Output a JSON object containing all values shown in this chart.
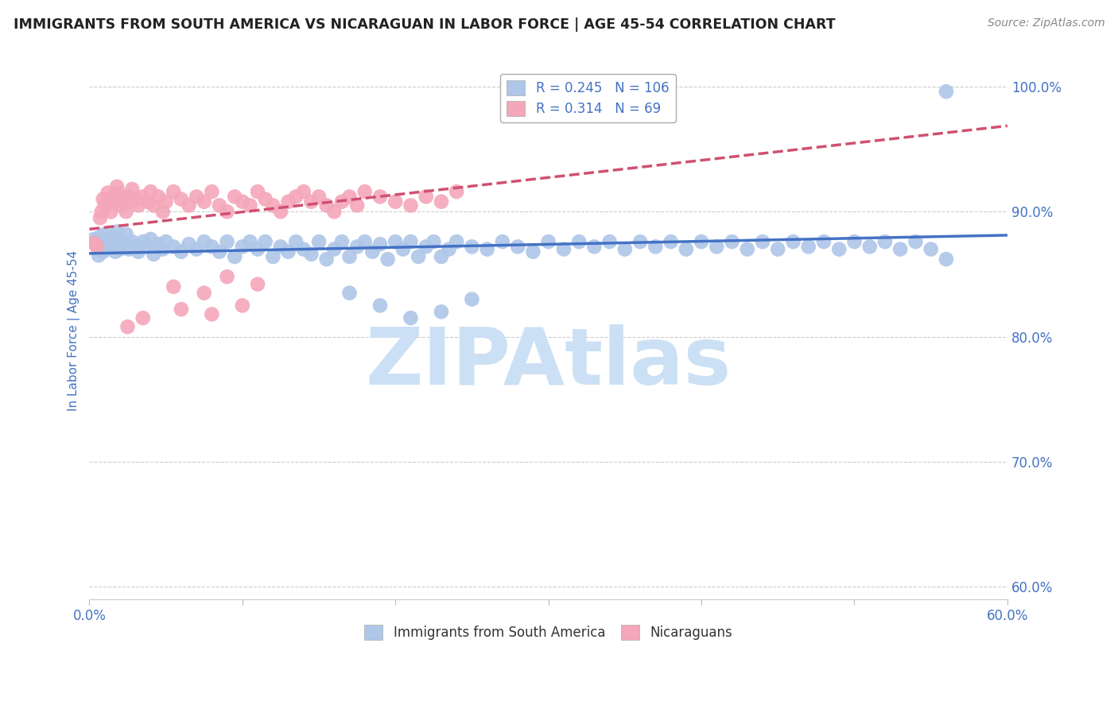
{
  "title": "IMMIGRANTS FROM SOUTH AMERICA VS NICARAGUAN IN LABOR FORCE | AGE 45-54 CORRELATION CHART",
  "source": "Source: ZipAtlas.com",
  "ylabel": "In Labor Force | Age 45-54",
  "xlim": [
    0.0,
    0.6
  ],
  "ylim": [
    0.59,
    1.02
  ],
  "yticks": [
    0.6,
    0.7,
    0.8,
    0.9,
    1.0
  ],
  "ytick_labels": [
    "60.0%",
    "70.0%",
    "80.0%",
    "90.0%",
    "100.0%"
  ],
  "xtick_positions": [
    0.0,
    0.1,
    0.2,
    0.3,
    0.4,
    0.5,
    0.6
  ],
  "xtick_labels": [
    "0.0%",
    "",
    "",
    "",
    "",
    "",
    "60.0%"
  ],
  "blue_R": 0.245,
  "blue_N": 106,
  "pink_R": 0.314,
  "pink_N": 69,
  "blue_color": "#aec6e8",
  "pink_color": "#f4a7b9",
  "blue_line_color": "#4472c4",
  "pink_line_color": "#d05070",
  "legend_text_color": "#4472c4",
  "axis_label_color": "#4472c4",
  "tick_label_color": "#4472c4",
  "grid_color": "#cccccc",
  "watermark": "ZIPAtlas",
  "watermark_color": "#cce0f5",
  "title_color": "#222222",
  "source_color": "#888888",
  "blue_legend_label": "Immigrants from South America",
  "pink_legend_label": "Nicaraguans",
  "blue_scatter_x": [
    0.003,
    0.005,
    0.006,
    0.007,
    0.008,
    0.009,
    0.01,
    0.011,
    0.012,
    0.013,
    0.014,
    0.015,
    0.016,
    0.017,
    0.018,
    0.019,
    0.02,
    0.022,
    0.024,
    0.026,
    0.028,
    0.03,
    0.032,
    0.035,
    0.038,
    0.04,
    0.042,
    0.045,
    0.048,
    0.05,
    0.055,
    0.06,
    0.065,
    0.07,
    0.075,
    0.08,
    0.085,
    0.09,
    0.095,
    0.1,
    0.105,
    0.11,
    0.115,
    0.12,
    0.125,
    0.13,
    0.135,
    0.14,
    0.145,
    0.15,
    0.155,
    0.16,
    0.165,
    0.17,
    0.175,
    0.18,
    0.185,
    0.19,
    0.195,
    0.2,
    0.205,
    0.21,
    0.215,
    0.22,
    0.225,
    0.23,
    0.235,
    0.24,
    0.25,
    0.26,
    0.27,
    0.28,
    0.29,
    0.3,
    0.31,
    0.32,
    0.33,
    0.34,
    0.35,
    0.36,
    0.37,
    0.38,
    0.39,
    0.4,
    0.41,
    0.42,
    0.43,
    0.44,
    0.45,
    0.46,
    0.47,
    0.48,
    0.49,
    0.5,
    0.51,
    0.52,
    0.53,
    0.54,
    0.55,
    0.56,
    0.23,
    0.25,
    0.17,
    0.19,
    0.21,
    0.56
  ],
  "blue_scatter_y": [
    0.878,
    0.872,
    0.865,
    0.88,
    0.875,
    0.868,
    0.882,
    0.876,
    0.87,
    0.878,
    0.872,
    0.88,
    0.875,
    0.868,
    0.884,
    0.876,
    0.87,
    0.876,
    0.882,
    0.87,
    0.876,
    0.872,
    0.868,
    0.876,
    0.872,
    0.878,
    0.866,
    0.874,
    0.87,
    0.876,
    0.872,
    0.868,
    0.874,
    0.87,
    0.876,
    0.872,
    0.868,
    0.876,
    0.864,
    0.872,
    0.876,
    0.87,
    0.876,
    0.864,
    0.872,
    0.868,
    0.876,
    0.87,
    0.866,
    0.876,
    0.862,
    0.87,
    0.876,
    0.864,
    0.872,
    0.876,
    0.868,
    0.874,
    0.862,
    0.876,
    0.87,
    0.876,
    0.864,
    0.872,
    0.876,
    0.864,
    0.87,
    0.876,
    0.872,
    0.87,
    0.876,
    0.872,
    0.868,
    0.876,
    0.87,
    0.876,
    0.872,
    0.876,
    0.87,
    0.876,
    0.872,
    0.876,
    0.87,
    0.876,
    0.872,
    0.876,
    0.87,
    0.876,
    0.87,
    0.876,
    0.872,
    0.876,
    0.87,
    0.876,
    0.872,
    0.876,
    0.87,
    0.876,
    0.87,
    0.996,
    0.82,
    0.83,
    0.835,
    0.825,
    0.815,
    0.862
  ],
  "pink_scatter_x": [
    0.003,
    0.005,
    0.007,
    0.008,
    0.009,
    0.01,
    0.012,
    0.013,
    0.014,
    0.015,
    0.016,
    0.018,
    0.019,
    0.02,
    0.022,
    0.024,
    0.025,
    0.026,
    0.028,
    0.03,
    0.032,
    0.035,
    0.038,
    0.04,
    0.042,
    0.045,
    0.048,
    0.05,
    0.055,
    0.06,
    0.065,
    0.07,
    0.075,
    0.08,
    0.085,
    0.09,
    0.095,
    0.1,
    0.105,
    0.11,
    0.115,
    0.12,
    0.125,
    0.13,
    0.135,
    0.14,
    0.145,
    0.15,
    0.155,
    0.16,
    0.165,
    0.17,
    0.175,
    0.18,
    0.19,
    0.2,
    0.21,
    0.22,
    0.23,
    0.24,
    0.055,
    0.075,
    0.09,
    0.11,
    0.025,
    0.035,
    0.06,
    0.08,
    0.1
  ],
  "pink_scatter_y": [
    0.875,
    0.872,
    0.895,
    0.9,
    0.91,
    0.905,
    0.915,
    0.91,
    0.9,
    0.912,
    0.908,
    0.92,
    0.915,
    0.905,
    0.91,
    0.9,
    0.912,
    0.908,
    0.918,
    0.91,
    0.905,
    0.912,
    0.908,
    0.916,
    0.905,
    0.912,
    0.9,
    0.908,
    0.916,
    0.91,
    0.905,
    0.912,
    0.908,
    0.916,
    0.905,
    0.9,
    0.912,
    0.908,
    0.905,
    0.916,
    0.91,
    0.905,
    0.9,
    0.908,
    0.912,
    0.916,
    0.908,
    0.912,
    0.905,
    0.9,
    0.908,
    0.912,
    0.905,
    0.916,
    0.912,
    0.908,
    0.905,
    0.912,
    0.908,
    0.916,
    0.84,
    0.835,
    0.848,
    0.842,
    0.808,
    0.815,
    0.822,
    0.818,
    0.825
  ]
}
